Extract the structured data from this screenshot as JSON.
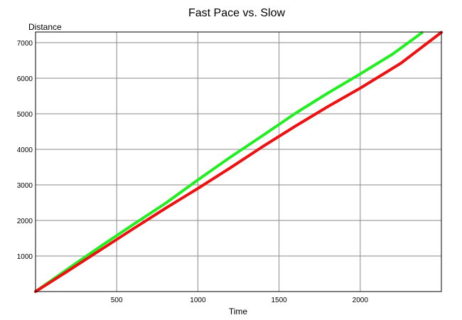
{
  "chart_data": {
    "type": "line",
    "title": "Fast Pace vs. Slow",
    "xlabel": "Time",
    "ylabel": "Distance",
    "xlim": [
      0,
      2500
    ],
    "ylim": [
      0,
      7300
    ],
    "xticks": [
      500,
      1000,
      1500,
      2000
    ],
    "yticks": [
      1000,
      2000,
      3000,
      4000,
      5000,
      6000,
      7000
    ],
    "grid": true,
    "legend": "none",
    "series": [
      {
        "color": "#22ee22",
        "x": [
          0,
          200,
          400,
          600,
          800,
          1000,
          1200,
          1400,
          1600,
          1800,
          2000,
          2200,
          2380
        ],
        "y": [
          0,
          640,
          1270,
          1880,
          2480,
          3140,
          3780,
          4390,
          5010,
          5580,
          6120,
          6680,
          7280
        ]
      },
      {
        "color": "#ee1111",
        "x": [
          0,
          200,
          400,
          600,
          800,
          1000,
          1200,
          1400,
          1600,
          1800,
          2000,
          2250,
          2500
        ],
        "y": [
          0,
          580,
          1170,
          1760,
          2340,
          2900,
          3480,
          4080,
          4650,
          5200,
          5720,
          6420,
          7290
        ]
      }
    ]
  }
}
